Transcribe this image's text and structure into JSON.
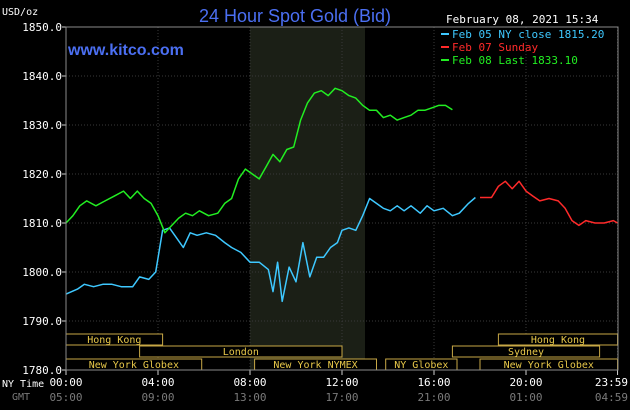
{
  "chart_data": {
    "type": "line",
    "title": "24 Hour Spot Gold (Bid)",
    "watermark": "www.kitco.com",
    "ylabel": "USD/oz",
    "date_label": "February 08, 2021 15:34",
    "ylim": [
      1780,
      1850
    ],
    "yticks": [
      "1850.0",
      "1840.0",
      "1830.0",
      "1820.0",
      "1810.0",
      "1800.0",
      "1790.0",
      "1780.0"
    ],
    "xlim": [
      0,
      24
    ],
    "xticks": [
      {
        "x": 0,
        "ny": "00:00",
        "gmt": "05:00"
      },
      {
        "x": 4,
        "ny": "04:00",
        "gmt": "09:00"
      },
      {
        "x": 8,
        "ny": "08:00",
        "gmt": "13:00"
      },
      {
        "x": 12,
        "ny": "12:00",
        "gmt": "17:00"
      },
      {
        "x": 16,
        "ny": "16:00",
        "gmt": "21:00"
      },
      {
        "x": 20,
        "ny": "20:00",
        "gmt": "01:00"
      },
      {
        "x": 23.98,
        "ny": "23:59",
        "gmt": "04:59"
      }
    ],
    "ny_time_label": "NY Time",
    "gmt_label": "GMT",
    "highlight_range": [
      8,
      13
    ],
    "legend": [
      {
        "label": "Feb 05 NY close 1815.20",
        "color": "#3ec8ff"
      },
      {
        "label": "Feb 07 Sunday",
        "color": "#ff2a2a"
      },
      {
        "label": "Feb 08 Last 1833.10",
        "color": "#22ee22"
      }
    ],
    "series": [
      {
        "name": "Feb 05 NY close 1815.20",
        "color": "#3ec8ff",
        "points": [
          [
            0,
            1795.5
          ],
          [
            0.5,
            1796.5
          ],
          [
            0.8,
            1797.5
          ],
          [
            1.2,
            1797
          ],
          [
            1.6,
            1797.5
          ],
          [
            2,
            1797.5
          ],
          [
            2.4,
            1797
          ],
          [
            2.9,
            1797
          ],
          [
            3.2,
            1799
          ],
          [
            3.6,
            1798.5
          ],
          [
            3.9,
            1800
          ],
          [
            4.2,
            1808.5
          ],
          [
            4.5,
            1809
          ],
          [
            4.8,
            1807
          ],
          [
            5.1,
            1805
          ],
          [
            5.4,
            1808
          ],
          [
            5.7,
            1807.5
          ],
          [
            6.1,
            1808
          ],
          [
            6.5,
            1807.5
          ],
          [
            6.9,
            1806
          ],
          [
            7.2,
            1805
          ],
          [
            7.6,
            1804
          ],
          [
            8.0,
            1802
          ],
          [
            8.4,
            1802
          ],
          [
            8.8,
            1800.5
          ],
          [
            9.0,
            1796
          ],
          [
            9.2,
            1802
          ],
          [
            9.4,
            1794
          ],
          [
            9.7,
            1801
          ],
          [
            10.0,
            1798
          ],
          [
            10.3,
            1806
          ],
          [
            10.6,
            1799
          ],
          [
            10.9,
            1803
          ],
          [
            11.2,
            1803
          ],
          [
            11.5,
            1805
          ],
          [
            11.8,
            1806
          ],
          [
            12.0,
            1808.5
          ],
          [
            12.3,
            1809
          ],
          [
            12.6,
            1808.5
          ],
          [
            12.9,
            1811.5
          ],
          [
            13.2,
            1815
          ],
          [
            13.5,
            1814
          ],
          [
            13.8,
            1813
          ],
          [
            14.1,
            1812.5
          ],
          [
            14.4,
            1813.5
          ],
          [
            14.7,
            1812.5
          ],
          [
            15.0,
            1813.5
          ],
          [
            15.4,
            1812
          ],
          [
            15.7,
            1813.5
          ],
          [
            16.0,
            1812.5
          ],
          [
            16.4,
            1813
          ],
          [
            16.8,
            1811.5
          ],
          [
            17.1,
            1812
          ],
          [
            17.5,
            1814
          ],
          [
            17.8,
            1815.2
          ]
        ]
      },
      {
        "name": "Feb 07 Sunday",
        "color": "#ff2a2a",
        "points": [
          [
            18.0,
            1815.2
          ],
          [
            18.5,
            1815.2
          ],
          [
            18.8,
            1817.5
          ],
          [
            19.1,
            1818.5
          ],
          [
            19.4,
            1817
          ],
          [
            19.7,
            1818.5
          ],
          [
            20.0,
            1816.5
          ],
          [
            20.3,
            1815.5
          ],
          [
            20.6,
            1814.5
          ],
          [
            21.0,
            1815
          ],
          [
            21.4,
            1814.5
          ],
          [
            21.7,
            1813
          ],
          [
            22.0,
            1810.5
          ],
          [
            22.3,
            1809.5
          ],
          [
            22.6,
            1810.5
          ],
          [
            23.0,
            1810
          ],
          [
            23.4,
            1810
          ],
          [
            23.8,
            1810.5
          ],
          [
            23.98,
            1810
          ]
        ]
      },
      {
        "name": "Feb 08 Last 1833.10",
        "color": "#22ee22",
        "points": [
          [
            0,
            1810
          ],
          [
            0.3,
            1811.5
          ],
          [
            0.6,
            1813.5
          ],
          [
            0.9,
            1814.5
          ],
          [
            1.3,
            1813.5
          ],
          [
            1.7,
            1814.5
          ],
          [
            2.1,
            1815.5
          ],
          [
            2.5,
            1816.5
          ],
          [
            2.8,
            1815
          ],
          [
            3.1,
            1816.5
          ],
          [
            3.4,
            1815
          ],
          [
            3.7,
            1814
          ],
          [
            4.0,
            1811.5
          ],
          [
            4.3,
            1808
          ],
          [
            4.6,
            1809.5
          ],
          [
            4.9,
            1811
          ],
          [
            5.2,
            1812
          ],
          [
            5.5,
            1811.5
          ],
          [
            5.8,
            1812.5
          ],
          [
            6.2,
            1811.5
          ],
          [
            6.6,
            1812
          ],
          [
            6.9,
            1814
          ],
          [
            7.2,
            1815
          ],
          [
            7.5,
            1819
          ],
          [
            7.8,
            1821
          ],
          [
            8.1,
            1820
          ],
          [
            8.4,
            1819
          ],
          [
            8.7,
            1821.5
          ],
          [
            9.0,
            1824
          ],
          [
            9.3,
            1822.5
          ],
          [
            9.6,
            1825
          ],
          [
            9.9,
            1825.5
          ],
          [
            10.2,
            1831
          ],
          [
            10.5,
            1834.5
          ],
          [
            10.8,
            1836.5
          ],
          [
            11.1,
            1837
          ],
          [
            11.4,
            1836
          ],
          [
            11.7,
            1837.5
          ],
          [
            12.0,
            1837
          ],
          [
            12.3,
            1836
          ],
          [
            12.6,
            1835.5
          ],
          [
            12.9,
            1834
          ],
          [
            13.2,
            1833
          ],
          [
            13.5,
            1833
          ],
          [
            13.8,
            1831.5
          ],
          [
            14.1,
            1832
          ],
          [
            14.4,
            1831
          ],
          [
            14.7,
            1831.5
          ],
          [
            15.0,
            1832
          ],
          [
            15.3,
            1833
          ],
          [
            15.6,
            1833
          ],
          [
            15.9,
            1833.5
          ],
          [
            16.2,
            1834
          ],
          [
            16.5,
            1834
          ],
          [
            16.8,
            1833.1
          ]
        ]
      }
    ],
    "sessions": [
      {
        "label": "Hong Kong",
        "row": 0,
        "start": 0,
        "end": 4.2
      },
      {
        "label": "London",
        "row": 1,
        "start": 3.2,
        "end": 12.0
      },
      {
        "label": "New York Globex",
        "row": 2,
        "start": 0,
        "end": 5.9
      },
      {
        "label": "New York NYMEX",
        "row": 2,
        "start": 8.2,
        "end": 13.5
      },
      {
        "label": "NY Globex",
        "row": 2,
        "start": 13.9,
        "end": 17.0
      },
      {
        "label": "Hong Kong",
        "row": 0,
        "start": 18.8,
        "end": 23.98
      },
      {
        "label": "Sydney",
        "row": 1,
        "start": 16.8,
        "end": 23.2
      },
      {
        "label": "New York Globex",
        "row": 2,
        "start": 18.0,
        "end": 23.98
      }
    ]
  }
}
